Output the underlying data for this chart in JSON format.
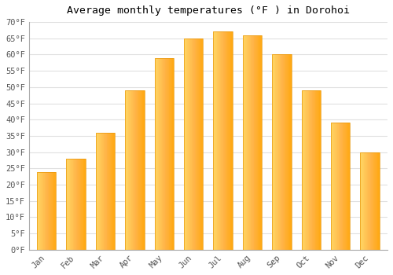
{
  "title": "Average monthly temperatures (°F ) in Dorohoi",
  "months": [
    "Jan",
    "Feb",
    "Mar",
    "Apr",
    "May",
    "Jun",
    "Jul",
    "Aug",
    "Sep",
    "Oct",
    "Nov",
    "Dec"
  ],
  "values": [
    24,
    28,
    36,
    49,
    59,
    65,
    67,
    66,
    60,
    49,
    39,
    30
  ],
  "bar_color_left": "#FFD966",
  "bar_color_right": "#FFA500",
  "ylim": [
    0,
    70
  ],
  "yticks": [
    0,
    5,
    10,
    15,
    20,
    25,
    30,
    35,
    40,
    45,
    50,
    55,
    60,
    65,
    70
  ],
  "ytick_labels": [
    "0°F",
    "5°F",
    "10°F",
    "15°F",
    "20°F",
    "25°F",
    "30°F",
    "35°F",
    "40°F",
    "45°F",
    "50°F",
    "55°F",
    "60°F",
    "65°F",
    "70°F"
  ],
  "title_fontsize": 9.5,
  "tick_fontsize": 7.5,
  "background_color": "#ffffff",
  "plot_bg_color": "#ffffff",
  "grid_color": "#e0e0e0",
  "bar_width": 0.65,
  "bar_edge_color": "#E8960A",
  "bar_edge_width": 0.5
}
